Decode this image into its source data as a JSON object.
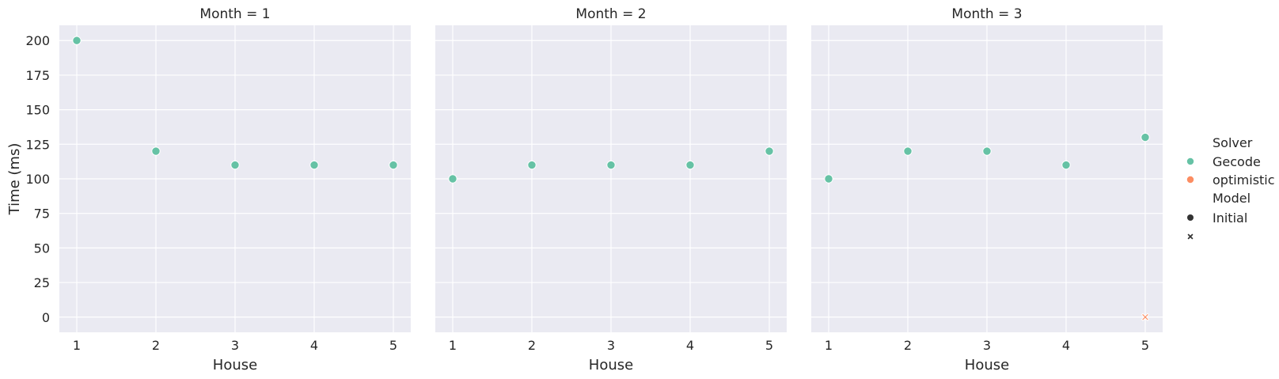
{
  "chart_data": {
    "type": "scatter",
    "ylabel": "Time (ms)",
    "xlabel": "House",
    "ylim": [
      -11,
      211
    ],
    "yticks": [
      0,
      25,
      50,
      75,
      100,
      125,
      150,
      175,
      200
    ],
    "xlim": [
      0.78,
      5.22
    ],
    "xticks": [
      1,
      2,
      3,
      4,
      5
    ],
    "grid": true,
    "colors": {
      "Gecode": "#66c2a5",
      "optimistic": "#fc8d62",
      "background": "#eaeaf2"
    },
    "panels": [
      {
        "title": "Month = 1",
        "points": [
          {
            "x": 1,
            "y": 200,
            "solver": "Gecode",
            "model": "Initial"
          },
          {
            "x": 2,
            "y": 120,
            "solver": "Gecode",
            "model": "Initial"
          },
          {
            "x": 3,
            "y": 110,
            "solver": "Gecode",
            "model": "Initial"
          },
          {
            "x": 4,
            "y": 110,
            "solver": "Gecode",
            "model": "Initial"
          },
          {
            "x": 5,
            "y": 110,
            "solver": "Gecode",
            "model": "Initial"
          }
        ]
      },
      {
        "title": "Month = 2",
        "points": [
          {
            "x": 1,
            "y": 100,
            "solver": "Gecode",
            "model": "Initial"
          },
          {
            "x": 2,
            "y": 110,
            "solver": "Gecode",
            "model": "Initial"
          },
          {
            "x": 3,
            "y": 110,
            "solver": "Gecode",
            "model": "Initial"
          },
          {
            "x": 4,
            "y": 110,
            "solver": "Gecode",
            "model": "Initial"
          },
          {
            "x": 5,
            "y": 120,
            "solver": "Gecode",
            "model": "Initial"
          }
        ]
      },
      {
        "title": "Month = 3",
        "points": [
          {
            "x": 1,
            "y": 100,
            "solver": "Gecode",
            "model": "Initial"
          },
          {
            "x": 2,
            "y": 120,
            "solver": "Gecode",
            "model": "Initial"
          },
          {
            "x": 3,
            "y": 120,
            "solver": "Gecode",
            "model": "Initial"
          },
          {
            "x": 4,
            "y": 110,
            "solver": "Gecode",
            "model": "Initial"
          },
          {
            "x": 5,
            "y": 130,
            "solver": "Gecode",
            "model": "Initial"
          },
          {
            "x": 5,
            "y": 0,
            "solver": "optimistic",
            "model": ""
          }
        ]
      }
    ],
    "legend": {
      "placement": "right",
      "solver_title": "Solver",
      "solver_entries": [
        {
          "label": "Gecode",
          "color": "#66c2a5"
        },
        {
          "label": "optimistic",
          "color": "#fc8d62"
        }
      ],
      "model_title": "Model",
      "model_entries": [
        {
          "label": "Initial",
          "marker": "circle"
        },
        {
          "label": "",
          "marker": "x"
        }
      ]
    }
  }
}
